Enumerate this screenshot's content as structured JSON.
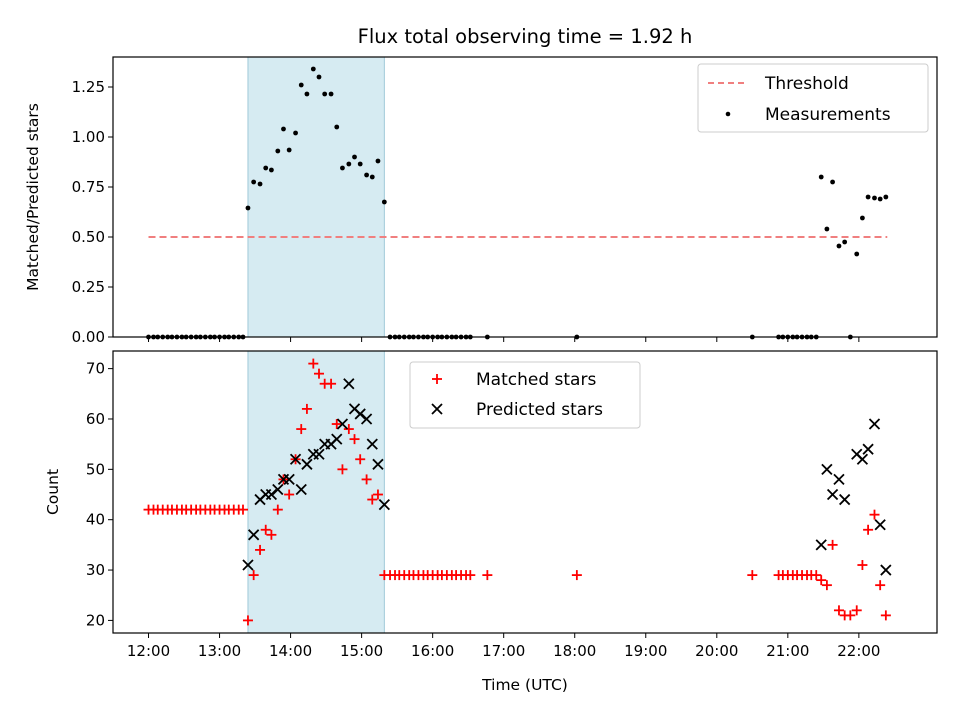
{
  "chart_data": [
    {
      "type": "scatter",
      "title": "Flux total observing time = 1.92 h",
      "xlabel": "",
      "ylabel": "Matched/Predicted stars",
      "ylim": [
        0,
        1.4
      ],
      "xlim_hours": [
        11.5,
        23.1
      ],
      "yticks": [
        "0.00",
        "0.25",
        "0.50",
        "0.75",
        "1.00",
        "1.25"
      ],
      "yticks_values": [
        0,
        0.25,
        0.5,
        0.75,
        1.0,
        1.25
      ],
      "shaded_range_hours": [
        13.4,
        15.32
      ],
      "legend_position": "upper right",
      "threshold": {
        "name": "Threshold",
        "value": 0.5,
        "x_range_hours": [
          12.0,
          22.4
        ],
        "color": "#f07f7f"
      },
      "measurements": {
        "name": "Measurements",
        "color": "#000000",
        "points": [
          [
            12.0,
            0
          ],
          [
            12.07,
            0
          ],
          [
            12.13,
            0
          ],
          [
            12.2,
            0
          ],
          [
            12.27,
            0
          ],
          [
            12.33,
            0
          ],
          [
            12.4,
            0
          ],
          [
            12.47,
            0
          ],
          [
            12.53,
            0
          ],
          [
            12.6,
            0
          ],
          [
            12.67,
            0
          ],
          [
            12.73,
            0
          ],
          [
            12.8,
            0
          ],
          [
            12.87,
            0
          ],
          [
            12.93,
            0
          ],
          [
            13.0,
            0
          ],
          [
            13.07,
            0
          ],
          [
            13.13,
            0
          ],
          [
            13.2,
            0
          ],
          [
            13.27,
            0
          ],
          [
            13.33,
            0
          ],
          [
            13.4,
            0.645
          ],
          [
            13.48,
            0.775
          ],
          [
            13.57,
            0.765
          ],
          [
            13.65,
            0.845
          ],
          [
            13.73,
            0.835
          ],
          [
            13.82,
            0.93
          ],
          [
            13.9,
            1.04
          ],
          [
            13.98,
            0.935
          ],
          [
            14.07,
            1.02
          ],
          [
            14.15,
            1.26
          ],
          [
            14.23,
            1.215
          ],
          [
            14.32,
            1.34
          ],
          [
            14.4,
            1.3
          ],
          [
            14.48,
            1.215
          ],
          [
            14.57,
            1.215
          ],
          [
            14.65,
            1.05
          ],
          [
            14.73,
            0.845
          ],
          [
            14.82,
            0.865
          ],
          [
            14.9,
            0.9
          ],
          [
            14.98,
            0.865
          ],
          [
            15.07,
            0.81
          ],
          [
            15.15,
            0.8
          ],
          [
            15.23,
            0.88
          ],
          [
            15.32,
            0.675
          ],
          [
            15.4,
            0
          ],
          [
            15.47,
            0
          ],
          [
            15.53,
            0
          ],
          [
            15.6,
            0
          ],
          [
            15.67,
            0
          ],
          [
            15.73,
            0
          ],
          [
            15.8,
            0
          ],
          [
            15.87,
            0
          ],
          [
            15.93,
            0
          ],
          [
            16.0,
            0
          ],
          [
            16.07,
            0
          ],
          [
            16.13,
            0
          ],
          [
            16.2,
            0
          ],
          [
            16.27,
            0
          ],
          [
            16.33,
            0
          ],
          [
            16.4,
            0
          ],
          [
            16.47,
            0
          ],
          [
            16.53,
            0
          ],
          [
            16.77,
            0
          ],
          [
            18.03,
            0
          ],
          [
            20.5,
            0
          ],
          [
            20.87,
            0
          ],
          [
            20.93,
            0
          ],
          [
            21.0,
            0
          ],
          [
            21.07,
            0
          ],
          [
            21.13,
            0
          ],
          [
            21.2,
            0
          ],
          [
            21.27,
            0
          ],
          [
            21.33,
            0
          ],
          [
            21.4,
            0
          ],
          [
            21.47,
            0.8
          ],
          [
            21.55,
            0.54
          ],
          [
            21.63,
            0.775
          ],
          [
            21.72,
            0.455
          ],
          [
            21.8,
            0.475
          ],
          [
            21.88,
            0
          ],
          [
            21.97,
            0.415
          ],
          [
            22.05,
            0.595
          ],
          [
            22.13,
            0.7
          ],
          [
            22.22,
            0.695
          ],
          [
            22.3,
            0.69
          ],
          [
            22.38,
            0.7
          ]
        ]
      }
    },
    {
      "type": "scatter",
      "title": "",
      "xlabel": "Time (UTC)",
      "ylabel": "Count",
      "ylim": [
        17.5,
        73.5
      ],
      "xlim_hours": [
        11.5,
        23.1
      ],
      "yticks": [
        "20",
        "30",
        "40",
        "50",
        "60",
        "70"
      ],
      "yticks_values": [
        20,
        30,
        40,
        50,
        60,
        70
      ],
      "xticks": [
        "12:00",
        "13:00",
        "14:00",
        "15:00",
        "16:00",
        "17:00",
        "18:00",
        "19:00",
        "20:00",
        "21:00",
        "22:00"
      ],
      "xticks_hours": [
        12,
        13,
        14,
        15,
        16,
        17,
        18,
        19,
        20,
        21,
        22
      ],
      "shaded_range_hours": [
        13.4,
        15.32
      ],
      "legend_position": "upper center",
      "series": [
        {
          "name": "Matched stars",
          "marker": "+",
          "color": "#ff0000",
          "points": [
            [
              12.0,
              42
            ],
            [
              12.07,
              42
            ],
            [
              12.13,
              42
            ],
            [
              12.2,
              42
            ],
            [
              12.27,
              42
            ],
            [
              12.33,
              42
            ],
            [
              12.4,
              42
            ],
            [
              12.47,
              42
            ],
            [
              12.53,
              42
            ],
            [
              12.6,
              42
            ],
            [
              12.67,
              42
            ],
            [
              12.73,
              42
            ],
            [
              12.8,
              42
            ],
            [
              12.87,
              42
            ],
            [
              12.93,
              42
            ],
            [
              13.0,
              42
            ],
            [
              13.07,
              42
            ],
            [
              13.13,
              42
            ],
            [
              13.2,
              42
            ],
            [
              13.27,
              42
            ],
            [
              13.33,
              42
            ],
            [
              13.4,
              20
            ],
            [
              13.48,
              29
            ],
            [
              13.57,
              34
            ],
            [
              13.65,
              38
            ],
            [
              13.73,
              37
            ],
            [
              13.82,
              42
            ],
            [
              13.9,
              48
            ],
            [
              13.98,
              45
            ],
            [
              14.07,
              52
            ],
            [
              14.15,
              58
            ],
            [
              14.23,
              62
            ],
            [
              14.32,
              71
            ],
            [
              14.4,
              69
            ],
            [
              14.48,
              67
            ],
            [
              14.57,
              67
            ],
            [
              14.65,
              59
            ],
            [
              14.73,
              50
            ],
            [
              14.82,
              58
            ],
            [
              14.9,
              56
            ],
            [
              14.98,
              52
            ],
            [
              15.07,
              48
            ],
            [
              15.15,
              44
            ],
            [
              15.23,
              45
            ],
            [
              15.32,
              29
            ],
            [
              15.4,
              29
            ],
            [
              15.47,
              29
            ],
            [
              15.53,
              29
            ],
            [
              15.6,
              29
            ],
            [
              15.67,
              29
            ],
            [
              15.73,
              29
            ],
            [
              15.8,
              29
            ],
            [
              15.87,
              29
            ],
            [
              15.93,
              29
            ],
            [
              16.0,
              29
            ],
            [
              16.07,
              29
            ],
            [
              16.13,
              29
            ],
            [
              16.2,
              29
            ],
            [
              16.27,
              29
            ],
            [
              16.33,
              29
            ],
            [
              16.4,
              29
            ],
            [
              16.47,
              29
            ],
            [
              16.53,
              29
            ],
            [
              16.77,
              29
            ],
            [
              18.03,
              29
            ],
            [
              20.5,
              29
            ],
            [
              20.87,
              29
            ],
            [
              20.93,
              29
            ],
            [
              21.0,
              29
            ],
            [
              21.07,
              29
            ],
            [
              21.13,
              29
            ],
            [
              21.2,
              29
            ],
            [
              21.27,
              29
            ],
            [
              21.33,
              29
            ],
            [
              21.4,
              29
            ],
            [
              21.47,
              28
            ],
            [
              21.55,
              27
            ],
            [
              21.63,
              35
            ],
            [
              21.72,
              22
            ],
            [
              21.8,
              21
            ],
            [
              21.88,
              21
            ],
            [
              21.97,
              22
            ],
            [
              22.05,
              31
            ],
            [
              22.13,
              38
            ],
            [
              22.22,
              41
            ],
            [
              22.3,
              27
            ],
            [
              22.38,
              21
            ]
          ]
        },
        {
          "name": "Predicted stars",
          "marker": "x",
          "color": "#000000",
          "points": [
            [
              13.4,
              31
            ],
            [
              13.48,
              37
            ],
            [
              13.57,
              44
            ],
            [
              13.65,
              45
            ],
            [
              13.73,
              45
            ],
            [
              13.82,
              46
            ],
            [
              13.9,
              48
            ],
            [
              13.98,
              48
            ],
            [
              14.07,
              52
            ],
            [
              14.15,
              46
            ],
            [
              14.23,
              51
            ],
            [
              14.32,
              53
            ],
            [
              14.4,
              53
            ],
            [
              14.48,
              55
            ],
            [
              14.57,
              55
            ],
            [
              14.65,
              56
            ],
            [
              14.73,
              59
            ],
            [
              14.82,
              67
            ],
            [
              14.9,
              62
            ],
            [
              14.98,
              61
            ],
            [
              15.07,
              60
            ],
            [
              15.15,
              55
            ],
            [
              15.23,
              51
            ],
            [
              15.32,
              43
            ],
            [
              21.47,
              35
            ],
            [
              21.55,
              50
            ],
            [
              21.63,
              45
            ],
            [
              21.72,
              48
            ],
            [
              21.8,
              44
            ],
            [
              21.97,
              53
            ],
            [
              22.05,
              52
            ],
            [
              22.13,
              54
            ],
            [
              22.22,
              59
            ],
            [
              22.3,
              39
            ],
            [
              22.38,
              30
            ]
          ]
        }
      ]
    }
  ]
}
